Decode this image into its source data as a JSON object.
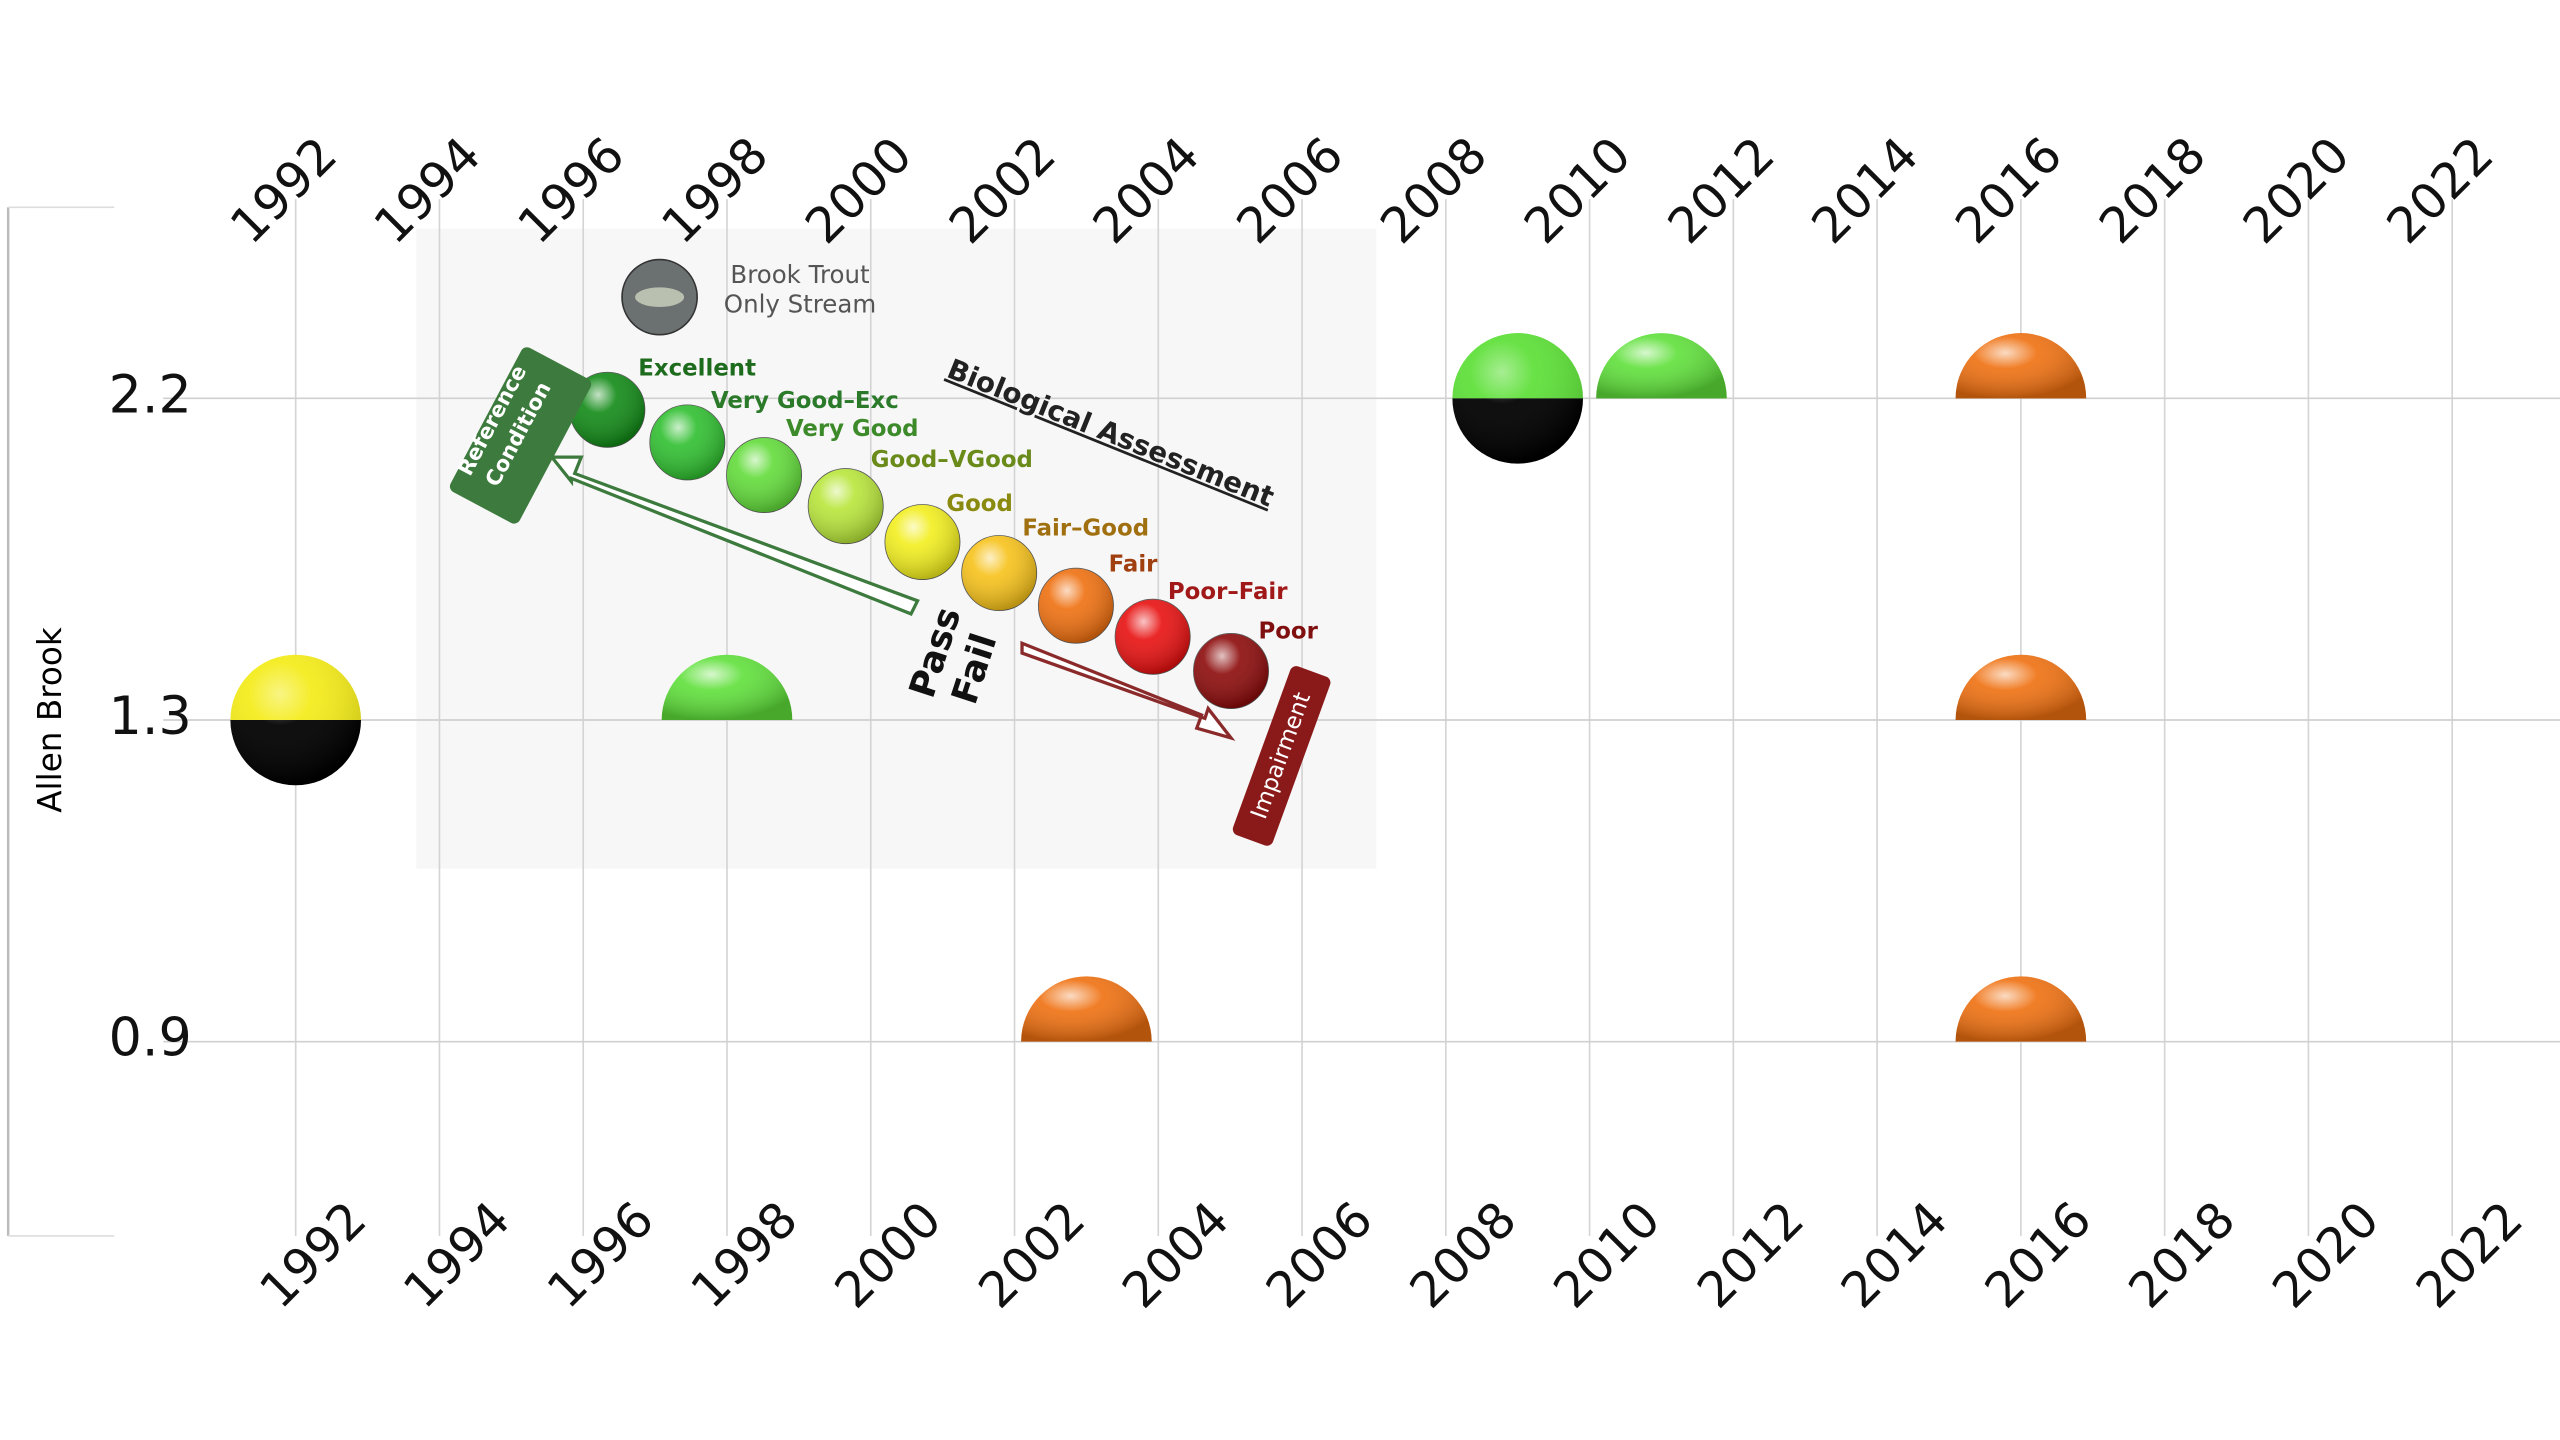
{
  "chart_data": {
    "type": "timeline",
    "y_axis_label": "Allen Brook",
    "xlim": [
      1988,
      2023.5
    ],
    "xticks": [
      1992,
      1994,
      1996,
      1998,
      2000,
      2002,
      2004,
      2006,
      2008,
      2010,
      2012,
      2014,
      2016,
      2018,
      2020,
      2022
    ],
    "grid": true,
    "rows": [
      {
        "label": "2.2",
        "points": [
          {
            "x": 2009,
            "color": "#5fe03a",
            "lower_color": "#000000"
          },
          {
            "x": 2011,
            "color": "#5fe03a"
          },
          {
            "x": 2016,
            "color": "#ef7010"
          }
        ]
      },
      {
        "label": "1.3",
        "points": [
          {
            "x": 1992,
            "color": "#f4ec1c",
            "lower_color": "#000000"
          },
          {
            "x": 1998,
            "color": "#5fe03a"
          },
          {
            "x": 2016,
            "color": "#ef7010"
          }
        ]
      },
      {
        "label": "0.9",
        "points": [
          {
            "x": 2003,
            "color": "#ef7010"
          },
          {
            "x": 2016,
            "color": "#ef7010"
          }
        ]
      }
    ],
    "legend": {
      "title": "Biological Assessment",
      "note": "Brook Trout Only Stream",
      "reference": "Reference Condition",
      "pass": "Pass",
      "fail": "Fail",
      "impairment": "Impairment",
      "items": [
        {
          "label": "Excellent",
          "color": "#118a16",
          "label_color": "#1d6b1d"
        },
        {
          "label": "Very Good–Exc",
          "color": "#2fbf2f",
          "label_color": "#2a7a2a"
        },
        {
          "label": "Very Good",
          "color": "#62dc3a",
          "label_color": "#3d8a2a"
        },
        {
          "label": "Good–VGood",
          "color": "#b8e63a",
          "label_color": "#6a8a1a"
        },
        {
          "label": "Good",
          "color": "#f2ee1e",
          "label_color": "#8a8a10"
        },
        {
          "label": "Fair–Good",
          "color": "#f7c21a",
          "label_color": "#a07010"
        },
        {
          "label": "Fair",
          "color": "#ef7010",
          "label_color": "#a04010"
        },
        {
          "label": "Poor–Fair",
          "color": "#e81010",
          "label_color": "#a01818"
        },
        {
          "label": "Poor",
          "color": "#8c0a0a",
          "label_color": "#801010"
        }
      ]
    }
  }
}
